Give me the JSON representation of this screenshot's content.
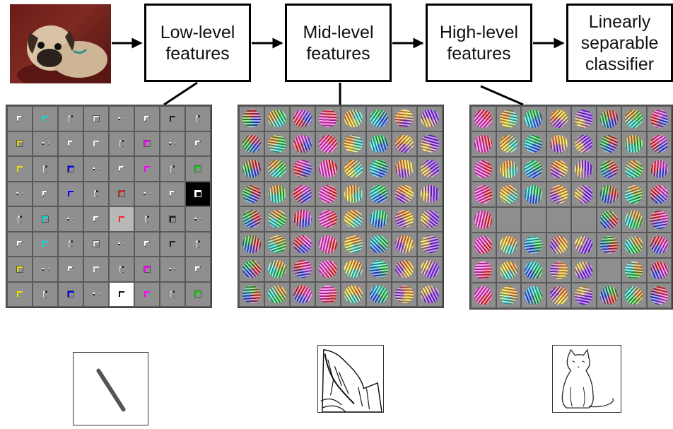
{
  "stages": [
    {
      "label": "Low-level\nfeatures"
    },
    {
      "label": "Mid-level\nfeatures"
    },
    {
      "label": "High-level\nfeatures"
    },
    {
      "label": "Linearly\nseparable\nclassifier"
    }
  ],
  "icons": {
    "input": "pug-photo",
    "edge": "diagonal-line-sketch",
    "part": "cat-ear-sketch",
    "object": "cat-sketch"
  },
  "colors": {
    "arrow": "#000000",
    "border": "#000000",
    "grid_bg": "#5a5a5a",
    "filter_gray": "#8f8f8f"
  }
}
